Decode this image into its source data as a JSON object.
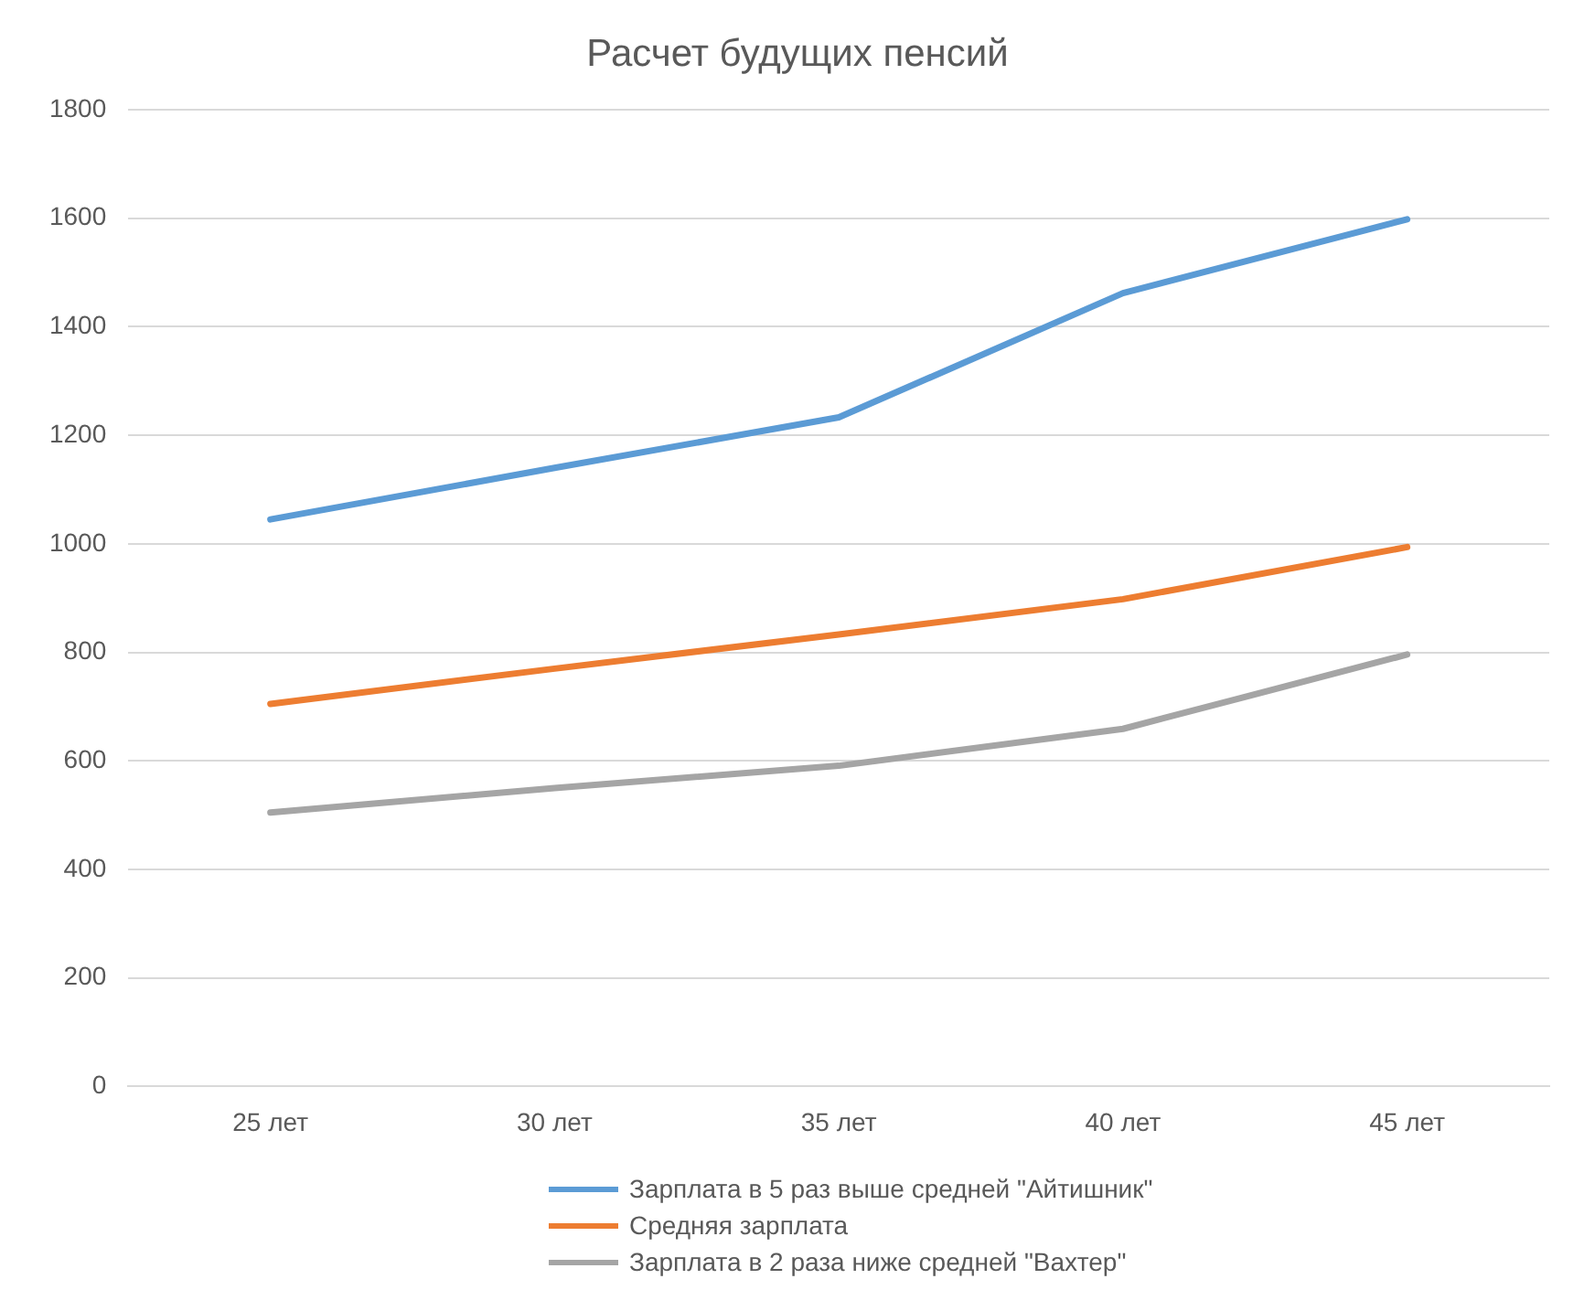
{
  "chart_data": {
    "type": "line",
    "title": "Расчет будущих пенсий",
    "categories": [
      "25 лет",
      "30 лет",
      "35 лет",
      "40 лет",
      "45 лет"
    ],
    "series": [
      {
        "name": "Зарплата в 5 раз выше средней \"Айтишник\"",
        "color": "#5b9bd5",
        "values": [
          1045,
          1140,
          1233,
          1462,
          1598
        ]
      },
      {
        "name": "Средняя зарплата",
        "color": "#ed7d31",
        "values": [
          705,
          770,
          833,
          898,
          994
        ]
      },
      {
        "name": "Зарплата в 2 раза ниже средней \"Вахтер\"",
        "color": "#a5a5a5",
        "values": [
          505,
          550,
          591,
          659,
          796
        ]
      }
    ],
    "ylim": [
      0,
      1800
    ],
    "yticks": [
      0,
      200,
      400,
      600,
      800,
      1000,
      1200,
      1400,
      1600,
      1800
    ],
    "grid": "y",
    "legend": "bottom",
    "marker": "none",
    "line_style": "solid"
  }
}
